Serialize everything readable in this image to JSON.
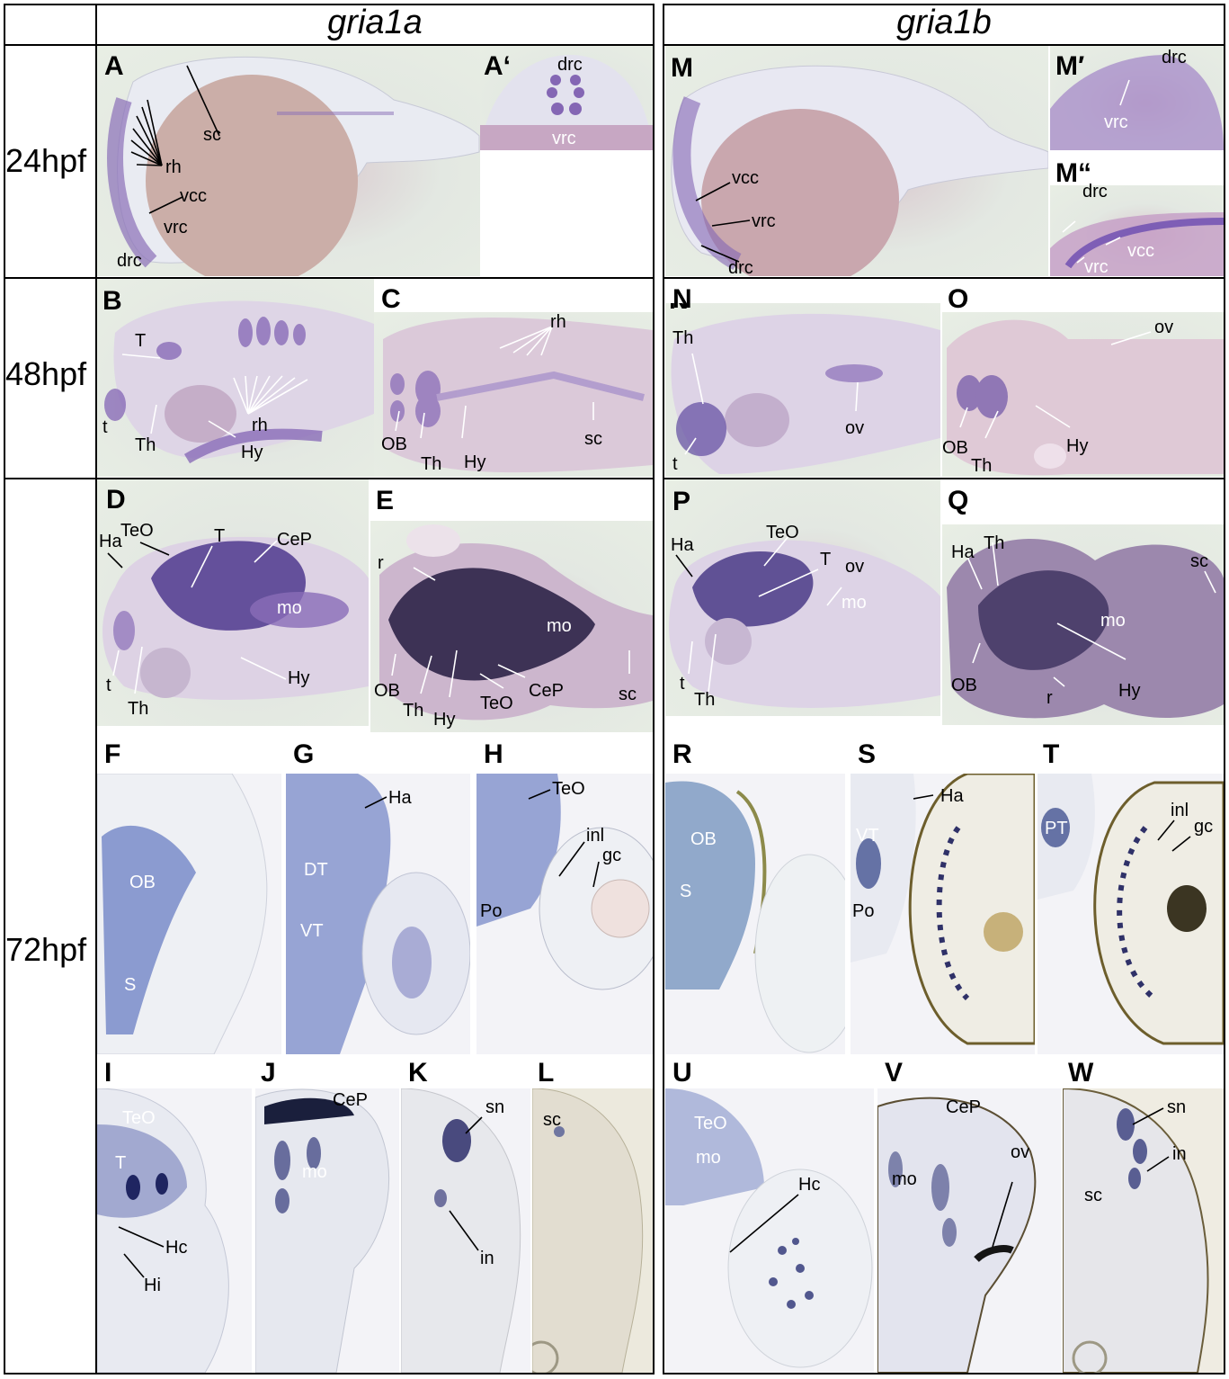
{
  "columns": {
    "left": "gria1a",
    "right": "gria1b"
  },
  "stages": {
    "s24": "24hpf",
    "s48": "48hpf",
    "s72": "72hpf"
  },
  "panels": {
    "A": {
      "label": "A",
      "sc": "sc",
      "rh": "rh",
      "vcc": "vcc",
      "vrc": "vrc",
      "drc": "drc"
    },
    "A2": {
      "label": "A‘",
      "drc": "drc",
      "vrc": "vrc"
    },
    "B": {
      "label": "B",
      "T": "T",
      "t": "t",
      "Th": "Th",
      "rh": "rh",
      "Hy": "Hy"
    },
    "C": {
      "label": "C",
      "rh": "rh",
      "OB": "OB",
      "Th": "Th",
      "Hy": "Hy",
      "sc": "sc"
    },
    "D": {
      "label": "D",
      "Ha": "Ha",
      "TeO": "TeO",
      "T": "T",
      "CeP": "CeP",
      "mo": "mo",
      "t": "t",
      "Th": "Th",
      "Hy": "Hy"
    },
    "E": {
      "label": "E",
      "r": "r",
      "mo": "mo",
      "OB": "OB",
      "Th": "Th",
      "Hy": "Hy",
      "TeO": "TeO",
      "CeP": "CeP",
      "sc": "sc"
    },
    "F": {
      "label": "F",
      "OB": "OB",
      "S": "S"
    },
    "G": {
      "label": "G",
      "Ha": "Ha",
      "DT": "DT",
      "VT": "VT"
    },
    "H": {
      "label": "H",
      "TeO": "TeO",
      "inl": "inl",
      "gc": "gc",
      "Po": "Po"
    },
    "I": {
      "label": "I",
      "TeO": "TeO",
      "T": "T",
      "Hc": "Hc",
      "Hi": "Hi"
    },
    "J": {
      "label": "J",
      "CeP": "CeP",
      "mo": "mo"
    },
    "K": {
      "label": "K",
      "sn": "sn",
      "in": "in"
    },
    "L": {
      "label": "L",
      "sc": "sc"
    },
    "M": {
      "label": "M",
      "vcc": "vcc",
      "vrc": "vrc",
      "drc": "drc"
    },
    "M2": {
      "label": "M′",
      "drc": "drc",
      "vrc": "vrc"
    },
    "M3": {
      "label": "M“",
      "drc": "drc",
      "vcc": "vcc",
      "vrc": "vrc"
    },
    "N": {
      "label": "N",
      "Th": "Th",
      "ov": "ov",
      "t": "t"
    },
    "O": {
      "label": "O",
      "ov": "ov",
      "OB": "OB",
      "Th": "Th",
      "Hy": "Hy"
    },
    "P": {
      "label": "P",
      "Ha": "Ha",
      "TeO": "TeO",
      "T": "T",
      "ov": "ov",
      "mo": "mo",
      "t": "t",
      "Th": "Th"
    },
    "Q": {
      "label": "Q",
      "Ha": "Ha",
      "Th": "Th",
      "sc": "sc",
      "mo": "mo",
      "OB": "OB",
      "Hy": "Hy",
      "r": "r"
    },
    "R": {
      "label": "R",
      "OB": "OB",
      "S": "S"
    },
    "S": {
      "label": "S",
      "Ha": "Ha",
      "VT": "VT",
      "Po": "Po"
    },
    "T": {
      "label": "T",
      "inl": "inl",
      "gc": "gc",
      "PT": "PT"
    },
    "U": {
      "label": "U",
      "TeO": "TeO",
      "mo": "mo",
      "Hc": "Hc"
    },
    "V": {
      "label": "V",
      "CeP": "CeP",
      "ov": "ov",
      "mo": "mo"
    },
    "W": {
      "label": "W",
      "sn": "sn",
      "in": "in",
      "sc": "sc"
    }
  }
}
